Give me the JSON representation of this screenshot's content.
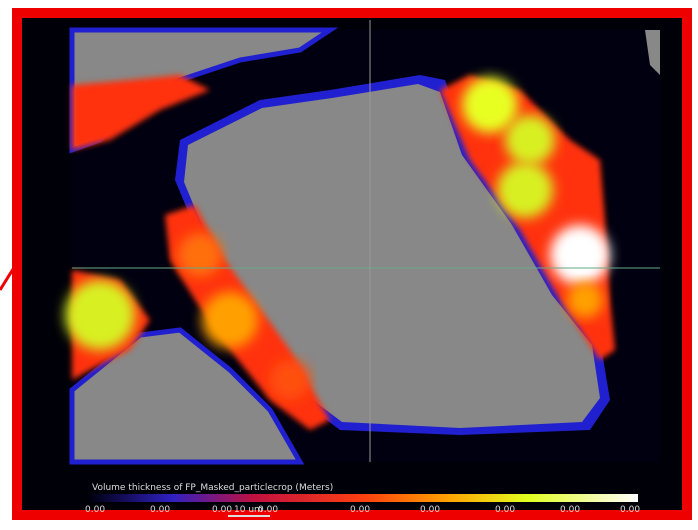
{
  "caption": "Volume thickness of FP_Masked_particlecrop (Meters)",
  "colorbar_labels": [
    "0.00",
    "0.00",
    "0.00",
    "0.00",
    "0.00",
    "0.00",
    "0.00",
    "0.00",
    "0.00"
  ],
  "scale_bar": "10 um"
}
